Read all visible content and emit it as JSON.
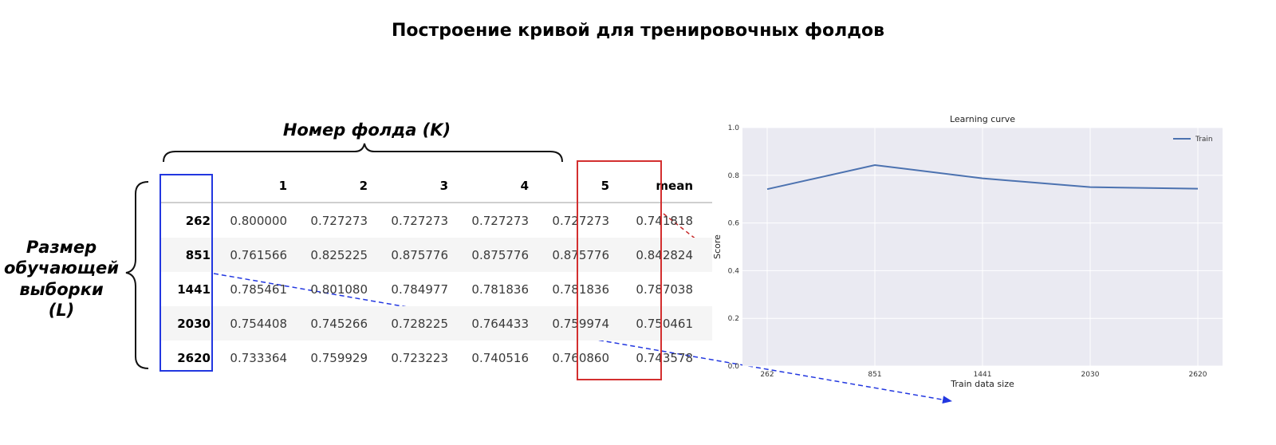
{
  "title": "Построение кривой для тренировочных фолдов",
  "labels": {
    "fold_number": "Номер фолда (K)",
    "sample_size_lines": [
      "Размер",
      "обучающей",
      "выборки",
      "(L)"
    ]
  },
  "table": {
    "columns": [
      "",
      "1",
      "2",
      "3",
      "4",
      "5",
      "mean"
    ],
    "rows": [
      {
        "index": "262",
        "values": [
          "0.800000",
          "0.727273",
          "0.727273",
          "0.727273",
          "0.727273"
        ],
        "mean": "0.741818"
      },
      {
        "index": "851",
        "values": [
          "0.761566",
          "0.825225",
          "0.875776",
          "0.875776",
          "0.875776"
        ],
        "mean": "0.842824"
      },
      {
        "index": "1441",
        "values": [
          "0.785461",
          "0.801080",
          "0.784977",
          "0.781836",
          "0.781836"
        ],
        "mean": "0.787038"
      },
      {
        "index": "2030",
        "values": [
          "0.754408",
          "0.745266",
          "0.728225",
          "0.764433",
          "0.759974"
        ],
        "mean": "0.750461"
      },
      {
        "index": "2620",
        "values": [
          "0.733364",
          "0.759929",
          "0.723223",
          "0.740516",
          "0.760860"
        ],
        "mean": "0.743578"
      }
    ]
  },
  "chart_data": {
    "type": "line",
    "title": "Learning curve",
    "xlabel": "Train data size",
    "ylabel": "Score",
    "categories": [
      "262",
      "851",
      "1441",
      "2030",
      "2620"
    ],
    "series": [
      {
        "name": "Train",
        "values": [
          0.741818,
          0.842824,
          0.787038,
          0.750461,
          0.743578
        ],
        "color": "#4c72b0"
      }
    ],
    "ylim": [
      0.0,
      1.0
    ],
    "yticks": [
      "0.0",
      "0.2",
      "0.4",
      "0.6",
      "0.8",
      "1.0"
    ],
    "grid": true,
    "legend": "top-right",
    "background": "#eaeaf2"
  },
  "colors": {
    "blue_box": "#2237e0",
    "red_box": "#d32f2f",
    "blue_arrow": "#2237e0",
    "red_arrow": "#c62828"
  }
}
